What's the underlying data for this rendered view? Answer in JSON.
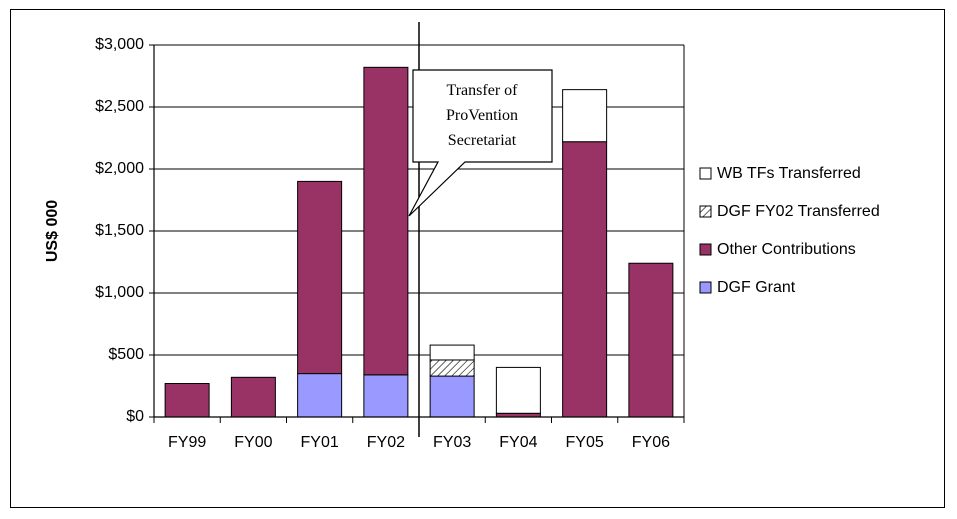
{
  "chart_data": {
    "type": "bar",
    "stacked": true,
    "title": "",
    "xlabel": "",
    "ylabel": "US$ 000",
    "ylim": [
      0,
      3000
    ],
    "yticks": [
      0,
      500,
      1000,
      1500,
      2000,
      2500,
      3000
    ],
    "ytick_labels": [
      "$0",
      "$500",
      "$1,000",
      "$1,500",
      "$2,000",
      "$2,500",
      "$3,000"
    ],
    "categories": [
      "FY99",
      "FY00",
      "FY01",
      "FY02",
      "FY03",
      "FY04",
      "FY05",
      "FY06"
    ],
    "grid": true,
    "legend_position": "right",
    "series": [
      {
        "name": "DGF Grant",
        "color": "#9999ff",
        "pattern": "solid",
        "values": [
          0,
          0,
          350,
          340,
          330,
          0,
          0,
          0
        ]
      },
      {
        "name": "Other Contributions",
        "color": "#993366",
        "pattern": "solid",
        "values": [
          270,
          320,
          1550,
          2480,
          0,
          30,
          2220,
          1240
        ]
      },
      {
        "name": "DGF FY02 Transferred",
        "color": "#ffffff",
        "pattern": "diagonal-hatch",
        "values": [
          0,
          0,
          0,
          0,
          130,
          0,
          0,
          0
        ]
      },
      {
        "name": "WB TFs Transferred",
        "color": "#ffffff",
        "pattern": "solid",
        "values": [
          0,
          0,
          0,
          0,
          120,
          370,
          420,
          0
        ]
      }
    ],
    "legend_order": [
      "WB TFs Transferred",
      "DGF FY02 Transferred",
      "Other Contributions",
      "DGF Grant"
    ],
    "annotations": [
      {
        "text_lines": [
          "Transfer of",
          "ProVention",
          "Secretariat"
        ],
        "type": "callout",
        "points_to_between": [
          "FY02",
          "FY03"
        ]
      }
    ],
    "vertical_divider_between": [
      "FY02",
      "FY03"
    ]
  }
}
